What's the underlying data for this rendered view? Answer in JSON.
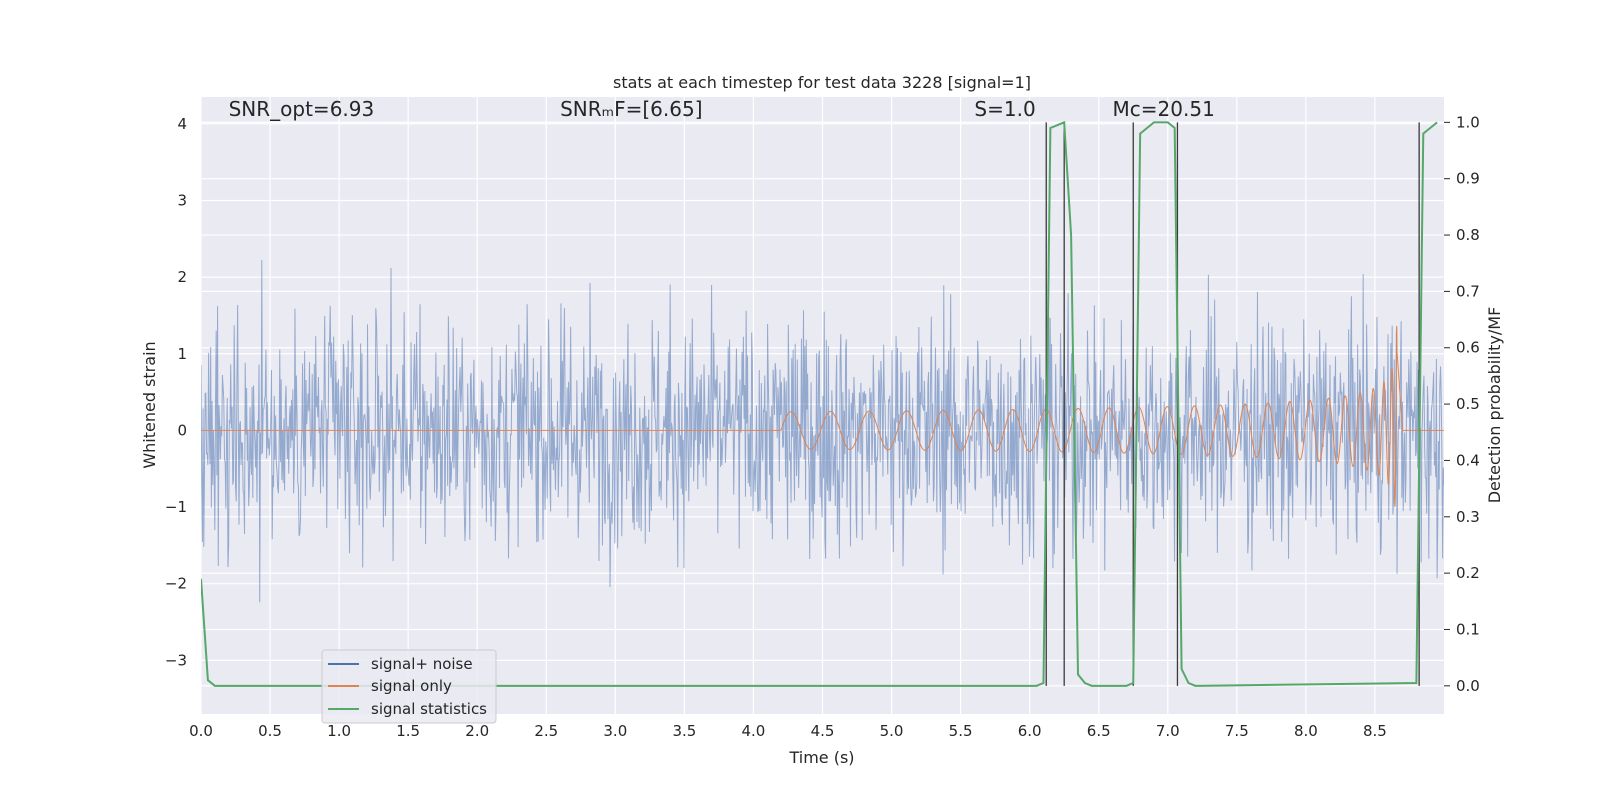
{
  "chart_data": {
    "type": "line",
    "title": "stats at each timestep for test data 3228 [signal=1]",
    "xlabel": "Time (s)",
    "ylabel": "Whitened strain",
    "y2label": "Detection probability/MF",
    "xlim": [
      0.0,
      9.0
    ],
    "ylim": [
      -3.7,
      4.35
    ],
    "y2lim": [
      -0.05,
      1.045
    ],
    "grid": true,
    "legend_position": "lower-left",
    "x_ticks": [
      "0.0",
      "0.5",
      "1.0",
      "1.5",
      "2.0",
      "2.5",
      "3.0",
      "3.5",
      "4.0",
      "4.5",
      "5.0",
      "5.5",
      "6.0",
      "6.5",
      "7.0",
      "7.5",
      "8.0",
      "8.5"
    ],
    "y_ticks": [
      "−3",
      "−2",
      "−1",
      "0",
      "1",
      "2",
      "3",
      "4"
    ],
    "y2_ticks": [
      "0.0",
      "0.1",
      "0.2",
      "0.3",
      "0.4",
      "0.5",
      "0.6",
      "0.7",
      "0.8",
      "0.9",
      "1.0"
    ],
    "x_tick_values": [
      0,
      0.5,
      1,
      1.5,
      2,
      2.5,
      3,
      3.5,
      4,
      4.5,
      5,
      5.5,
      6,
      6.5,
      7,
      7.5,
      8,
      8.5
    ],
    "y_tick_values": [
      -3,
      -2,
      -1,
      0,
      1,
      2,
      3,
      4
    ],
    "y2_tick_values": [
      0,
      0.1,
      0.2,
      0.3,
      0.4,
      0.5,
      0.6,
      0.7,
      0.8,
      0.9,
      1.0
    ],
    "annotations": [
      {
        "id": "snr-opt",
        "text": "SNR_opt=6.93",
        "x": 0.2,
        "y": 4.1
      },
      {
        "id": "snr-mf",
        "text": "SNRₘF=[6.65]",
        "x": 2.6,
        "y": 4.1
      },
      {
        "id": "s-stat",
        "text": "S=1.0",
        "x": 5.6,
        "y": 4.1
      },
      {
        "id": "mc",
        "text": "Mᴄ=20.51",
        "x": 6.6,
        "y": 4.1
      }
    ],
    "vertical_lines_x": [
      6.12,
      6.25,
      6.75,
      7.07,
      8.82
    ],
    "series": [
      {
        "name": "signal+ noise",
        "color": "#4c72b0",
        "axis": "left",
        "noise_std": 0.75,
        "noise_max_abs": 4.0,
        "samples": 1800
      },
      {
        "name": "signal only",
        "color": "#dd8452",
        "axis": "left",
        "chirp": {
          "start_time": 4.2,
          "merger_time": 8.66,
          "peak_amplitude": 1.4,
          "ringdown_end": 8.7
        }
      },
      {
        "name": "signal statistics",
        "color": "#55a868",
        "axis": "right",
        "x": [
          0.0,
          0.05,
          0.1,
          0.15,
          6.05,
          6.1,
          6.15,
          6.2,
          6.25,
          6.3,
          6.35,
          6.4,
          6.45,
          6.5,
          6.7,
          6.75,
          6.8,
          6.85,
          6.9,
          6.95,
          7.0,
          7.05,
          7.1,
          7.15,
          7.2,
          8.8,
          8.85,
          8.9,
          8.95
        ],
        "y": [
          0.19,
          0.01,
          0.0,
          0.0,
          0.0,
          0.005,
          0.99,
          0.995,
          1.0,
          0.8,
          0.02,
          0.005,
          0.0,
          0.0,
          0.0,
          0.005,
          0.98,
          0.99,
          1.0,
          1.0,
          1.0,
          0.99,
          0.03,
          0.005,
          0.0,
          0.005,
          0.98,
          0.99,
          1.0
        ]
      }
    ]
  }
}
